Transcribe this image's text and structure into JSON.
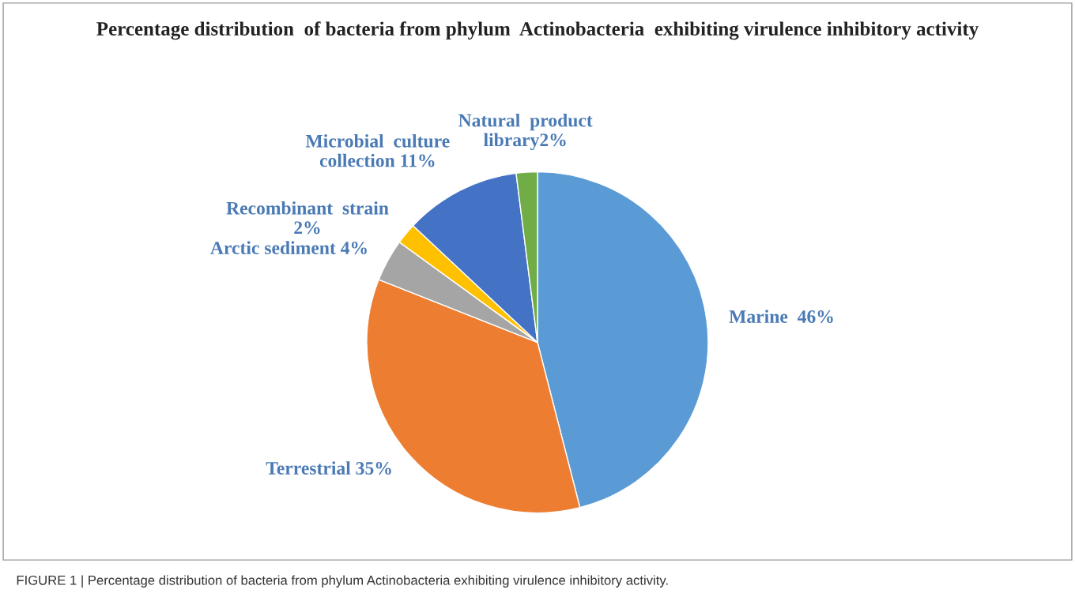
{
  "chart_data": {
    "type": "pie",
    "title": "Percentage distribution  of bacteria from phylum  Actinobacteria  exhibiting virulence inhibitory activity",
    "categories": [
      "Marine  46%",
      "Terrestrial 35%",
      "Arctic sediment 4%",
      "Recombinant  strain\n2%",
      "Microbial  culture\ncollection 11%",
      "Natural  product\nlibrary2%"
    ],
    "values": [
      46,
      35,
      4,
      2,
      11,
      2
    ],
    "colors": [
      "#5b9bd5",
      "#ed7d31",
      "#a5a5a5",
      "#ffc000",
      "#4472c4",
      "#70ad47"
    ],
    "annotations": [
      "FIGURE 1 | Percentage distribution of bacteria from phylum Actinobacteria exhibiting virulence inhibitory activity."
    ]
  }
}
